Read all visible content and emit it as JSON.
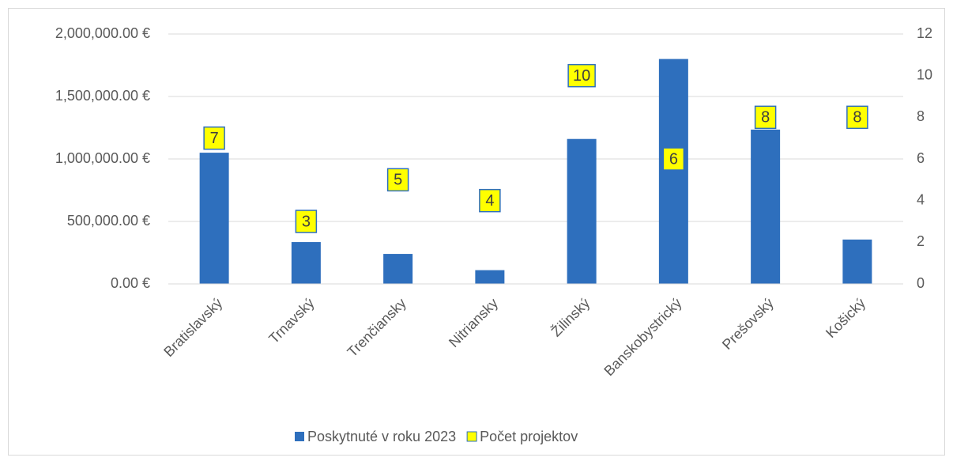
{
  "chart_data": {
    "type": "bar",
    "categories": [
      "Bratislavský",
      "Trnavský",
      "Trenčiansky",
      "Nitriansky",
      "Žilinský",
      "Banskobystrický",
      "Prešovský",
      "Košický"
    ],
    "series": [
      {
        "name": "Poskytnuté v roku 2023",
        "color": "#2e6fbd",
        "type": "bar",
        "values": [
          1050000,
          335000,
          240000,
          110000,
          1160000,
          1800000,
          1235000,
          355000
        ]
      },
      {
        "name": "Počet projektov",
        "color": "#ffff00",
        "type": "scatter",
        "axis": "y2",
        "values": [
          7,
          3,
          5,
          4,
          10,
          6,
          8,
          8
        ]
      }
    ],
    "ylim": [
      0,
      2000000
    ],
    "yticks": [
      {
        "value": 0,
        "label": "0.00 €"
      },
      {
        "value": 500000,
        "label": "500,000.00 €"
      },
      {
        "value": 1000000,
        "label": "1,000,000.00 €"
      },
      {
        "value": 1500000,
        "label": "1,500,000.00 €"
      },
      {
        "value": 2000000,
        "label": "2,000,000.00 €"
      }
    ],
    "y2lim": [
      0,
      12
    ],
    "y2ticks": [
      0,
      2,
      4,
      6,
      8,
      10,
      12
    ],
    "grid": true,
    "legend": "bottom"
  }
}
